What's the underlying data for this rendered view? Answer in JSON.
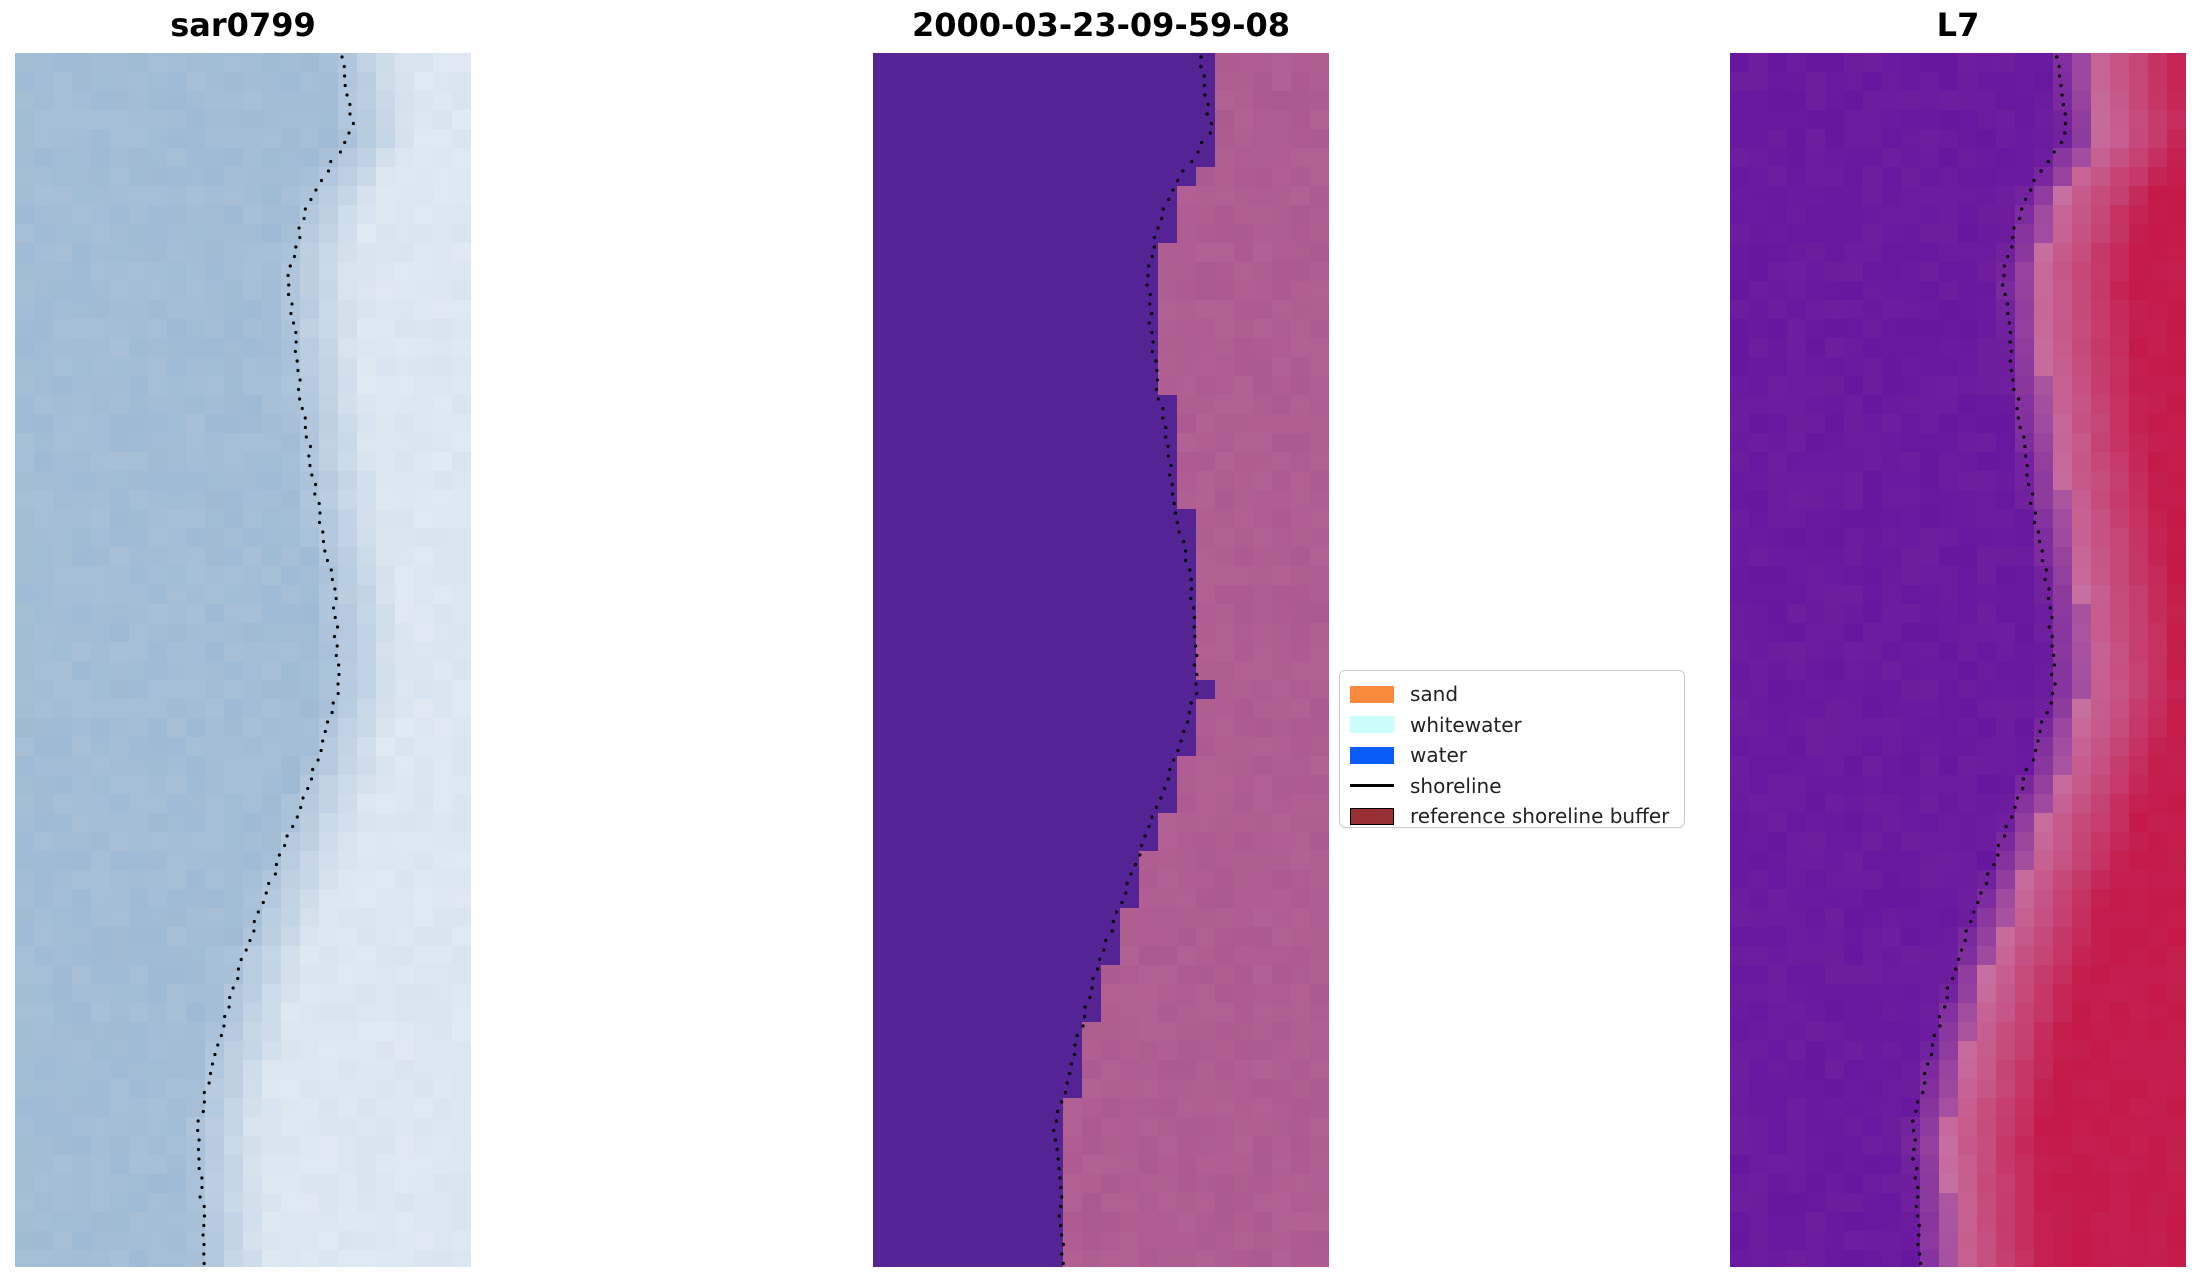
{
  "panels": [
    {
      "title": "sar0799",
      "style": "rgb-composite"
    },
    {
      "title": "2000-03-23-09-59-08",
      "style": "classification"
    },
    {
      "title": "L7",
      "style": "index"
    }
  ],
  "legend": {
    "items": [
      {
        "label": "sand",
        "color": "#f98a3c",
        "kind": "patch"
      },
      {
        "label": "whitewater",
        "color": "#ccfdfd",
        "kind": "patch"
      },
      {
        "label": "water",
        "color": "#0a5cf7",
        "kind": "patch"
      },
      {
        "label": "shoreline",
        "color": "#000000",
        "kind": "line"
      },
      {
        "label": "reference shoreline buffer",
        "color": "#993036",
        "kind": "patch-outlined"
      }
    ]
  },
  "colors": {
    "rgb_water": "#a3bdd6",
    "rgb_land": "#e6eef5",
    "class_water": "#542394",
    "class_sand": "#a9578e",
    "index_water": "#6a1a9e",
    "index_mid": "#c66e9f",
    "index_land": "#c41c4c"
  }
}
